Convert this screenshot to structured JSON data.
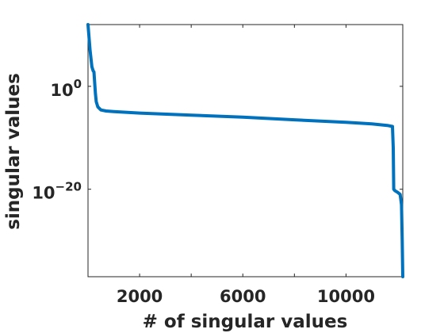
{
  "chart_data": {
    "type": "line",
    "title": "",
    "xlabel": "# of singular values",
    "ylabel": "singular values",
    "xscale": "linear",
    "yscale": "log",
    "xlim": [
      0,
      12200
    ],
    "ylim_exponent": [
      -37,
      12
    ],
    "x_ticks": [
      {
        "value": 2000,
        "label": "2000"
      },
      {
        "value": 4000,
        "label": ""
      },
      {
        "value": 6000,
        "label": "6000"
      },
      {
        "value": 8000,
        "label": ""
      },
      {
        "value": 10000,
        "label": "10000"
      }
    ],
    "y_ticks": [
      {
        "exponent": 0,
        "base": "10",
        "sup": "0"
      },
      {
        "exponent": -20,
        "base": "10",
        "sup": "−20"
      }
    ],
    "grid": false,
    "box": true,
    "series": [
      {
        "color": "#0072BD",
        "x": [
          1,
          80,
          150,
          200,
          230,
          260,
          290,
          320,
          380,
          500,
          700,
          1000,
          2000,
          4000,
          6000,
          8000,
          10000,
          11000,
          11600,
          11800,
          11830,
          11850,
          11900,
          12000,
          12100,
          12150,
          12180,
          12200
        ],
        "log10_y": [
          12,
          7,
          3.8,
          3.0,
          2.8,
          0.5,
          -1.5,
          -3.0,
          -4.0,
          -4.6,
          -4.8,
          -4.9,
          -5.2,
          -5.6,
          -6.0,
          -6.5,
          -7.0,
          -7.3,
          -7.6,
          -7.8,
          -12.0,
          -20.0,
          -20.3,
          -20.6,
          -21.0,
          -23.0,
          -30.0,
          -37.0
        ]
      }
    ]
  }
}
